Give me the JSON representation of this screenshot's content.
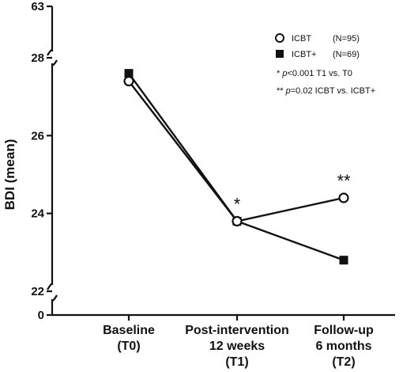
{
  "chart_data": {
    "type": "line",
    "ylabel": "BDI (mean)",
    "categories": [
      [
        "Baseline",
        "(T0)"
      ],
      [
        "Post-intervention",
        "12 weeks",
        "(T1)"
      ],
      [
        "Follow-up",
        "6 months",
        "(T2)"
      ]
    ],
    "y_axis": {
      "break": true,
      "ticks_main": [
        22,
        24,
        26,
        28
      ],
      "ticks_extra": [
        0,
        63
      ],
      "ylim": [
        22,
        28
      ]
    },
    "series": [
      {
        "name": "ICBT",
        "legend_label": "ICBT",
        "legend_n": "(N=95)",
        "marker": "open-circle",
        "values": [
          27.4,
          23.8,
          24.4
        ]
      },
      {
        "name": "ICBT+",
        "legend_label": "ICBT+",
        "legend_n": "(N=69)",
        "marker": "filled-square",
        "values": [
          27.6,
          23.8,
          22.8
        ]
      }
    ],
    "significance": [
      {
        "category_index": 1,
        "mark": "*"
      },
      {
        "category_index": 2,
        "mark": "**"
      }
    ],
    "notes": [
      {
        "stars": "*",
        "p": "p",
        "text": "<0.001 T1 vs. T0"
      },
      {
        "stars": "**",
        "p": "p",
        "text": "=0.02   ICBT vs. ICBT+"
      }
    ]
  }
}
